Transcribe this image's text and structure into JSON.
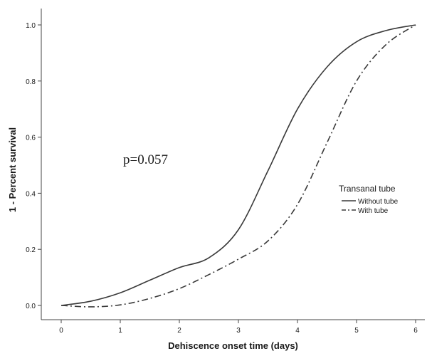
{
  "chart_data": {
    "type": "line",
    "title": "",
    "xlabel": "Dehiscence onset time (days)",
    "ylabel": "1 - Percent survival",
    "xlim": [
      -0.35,
      6.2
    ],
    "ylim": [
      -0.05,
      1.07
    ],
    "x_ticks": [
      "0",
      "1",
      "2",
      "3",
      "4",
      "5",
      "6"
    ],
    "y_ticks": [
      "0.0",
      "0.2",
      "0.4",
      "0.6",
      "0.8",
      "1.0"
    ],
    "grid": false,
    "annotation": "p=0.057",
    "legend": {
      "title": "Transanal tube",
      "position": "right",
      "items": [
        "Without tube",
        "With tube"
      ]
    },
    "series": [
      {
        "name": "Without tube",
        "line_style": "solid",
        "color": "#3a3a3a",
        "points": [
          [
            0,
            0.0
          ],
          [
            0.5,
            0.015
          ],
          [
            1,
            0.045
          ],
          [
            1.5,
            0.09
          ],
          [
            2,
            0.135
          ],
          [
            2.5,
            0.17
          ],
          [
            3,
            0.27
          ],
          [
            3.5,
            0.48
          ],
          [
            4,
            0.7
          ],
          [
            4.5,
            0.85
          ],
          [
            5,
            0.94
          ],
          [
            5.5,
            0.98
          ],
          [
            6,
            1.0
          ]
        ]
      },
      {
        "name": "With tube",
        "line_style": "dash-dot",
        "color": "#3a3a3a",
        "points": [
          [
            0,
            0.0
          ],
          [
            0.5,
            -0.005
          ],
          [
            1,
            0.002
          ],
          [
            1.5,
            0.025
          ],
          [
            2,
            0.06
          ],
          [
            2.5,
            0.11
          ],
          [
            3,
            0.165
          ],
          [
            3.5,
            0.23
          ],
          [
            4,
            0.36
          ],
          [
            4.5,
            0.58
          ],
          [
            5,
            0.8
          ],
          [
            5.5,
            0.93
          ],
          [
            6,
            1.0
          ]
        ]
      }
    ]
  }
}
